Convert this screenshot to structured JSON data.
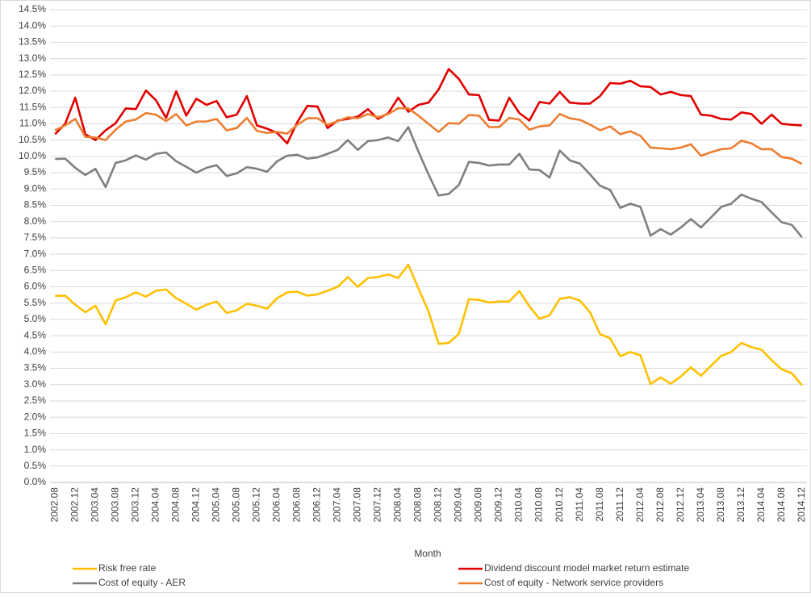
{
  "chart_data": {
    "type": "line",
    "x_label": "Month",
    "categories": [
      "2002.08",
      null,
      "2002.12",
      null,
      "2003.04",
      null,
      "2003.08",
      null,
      "2003.12",
      null,
      "2004.04",
      null,
      "2004.08",
      null,
      "2004.12",
      null,
      "2005.04",
      null,
      "2005.08",
      null,
      "2005.12",
      null,
      "2006.04",
      null,
      "2006.08",
      null,
      "2006.12",
      null,
      "2007.04",
      null,
      "2007.08",
      null,
      "2007.12",
      null,
      "2008.04",
      null,
      "2008.08",
      null,
      "2008.12",
      null,
      "2009.04",
      null,
      "2009.08",
      null,
      "2009.12",
      null,
      "2010.04",
      null,
      "2010.08",
      null,
      "2010.12",
      null,
      "2011.04",
      null,
      "2011.08",
      null,
      "2011.12",
      null,
      "2012.04",
      null,
      "2012.08",
      null,
      "2012.12",
      null,
      "2013.04",
      null,
      "2013.08",
      null,
      "2013.12",
      null,
      "2014.04",
      null,
      "2014.08",
      null,
      "2014.12"
    ],
    "series": [
      {
        "name": "Risk free rate",
        "color": "#ffc000",
        "values": [
          5.72,
          5.73,
          5.45,
          5.22,
          5.42,
          4.85,
          5.58,
          5.68,
          5.83,
          5.7,
          5.88,
          5.92,
          5.65,
          5.48,
          5.3,
          5.45,
          5.55,
          5.2,
          5.28,
          5.48,
          5.42,
          5.33,
          5.65,
          5.83,
          5.85,
          5.73,
          5.77,
          5.88,
          6.0,
          6.3,
          6.0,
          6.27,
          6.3,
          6.38,
          6.27,
          6.68,
          5.95,
          5.25,
          4.25,
          4.28,
          4.55,
          5.62,
          5.6,
          5.52,
          5.55,
          5.55,
          5.87,
          5.4,
          5.02,
          5.13,
          5.63,
          5.68,
          5.58,
          5.22,
          4.55,
          4.42,
          3.87,
          4.0,
          3.9,
          3.02,
          3.22,
          3.03,
          3.25,
          3.53,
          3.27,
          3.58,
          3.88,
          4.0,
          4.28,
          4.15,
          4.07,
          3.75,
          3.47,
          3.35,
          2.98
        ]
      },
      {
        "name": "Dividend discount model market return estimate",
        "color": "#e00000",
        "values": [
          10.68,
          11.0,
          11.8,
          10.68,
          10.5,
          10.8,
          11.02,
          11.47,
          11.45,
          12.02,
          11.72,
          11.18,
          12.0,
          11.25,
          11.77,
          11.58,
          11.7,
          11.2,
          11.28,
          11.85,
          10.95,
          10.85,
          10.72,
          10.4,
          11.05,
          11.55,
          11.53,
          10.87,
          11.1,
          11.15,
          11.22,
          11.45,
          11.15,
          11.32,
          11.8,
          11.37,
          11.58,
          11.65,
          12.05,
          12.68,
          12.38,
          11.9,
          11.88,
          11.12,
          11.1,
          11.8,
          11.33,
          11.1,
          11.67,
          11.62,
          11.98,
          11.65,
          11.62,
          11.62,
          11.85,
          12.25,
          12.23,
          12.32,
          12.15,
          12.13,
          11.9,
          11.98,
          11.88,
          11.85,
          11.28,
          11.25,
          11.15,
          11.13,
          11.35,
          11.3,
          11.0,
          11.28,
          11.0,
          10.97,
          10.95
        ]
      },
      {
        "name": "Cost of equity - AER",
        "color": "#7f7f7f",
        "values": [
          9.92,
          9.93,
          9.65,
          9.43,
          9.62,
          9.06,
          9.8,
          9.88,
          10.03,
          9.9,
          10.08,
          10.12,
          9.85,
          9.68,
          9.5,
          9.65,
          9.73,
          9.4,
          9.48,
          9.67,
          9.62,
          9.53,
          9.85,
          10.02,
          10.05,
          9.93,
          9.97,
          10.08,
          10.2,
          10.5,
          10.2,
          10.47,
          10.5,
          10.58,
          10.47,
          10.9,
          10.15,
          9.45,
          8.8,
          8.85,
          9.12,
          9.83,
          9.8,
          9.72,
          9.75,
          9.75,
          10.08,
          9.6,
          9.58,
          9.35,
          10.18,
          9.88,
          9.78,
          9.45,
          9.1,
          8.97,
          8.42,
          8.55,
          8.45,
          7.57,
          7.77,
          7.6,
          7.82,
          8.08,
          7.82,
          8.13,
          8.45,
          8.55,
          8.83,
          8.7,
          8.6,
          8.28,
          7.98,
          7.9,
          7.52
        ]
      },
      {
        "name": "Cost of equity - Network service providers",
        "color": "#ed7d31",
        "values": [
          10.8,
          10.95,
          11.15,
          10.6,
          10.58,
          10.5,
          10.82,
          11.07,
          11.13,
          11.33,
          11.28,
          11.08,
          11.3,
          10.95,
          11.07,
          11.07,
          11.15,
          10.8,
          10.87,
          11.18,
          10.78,
          10.72,
          10.75,
          10.7,
          10.97,
          11.17,
          11.17,
          10.97,
          11.08,
          11.2,
          11.17,
          11.3,
          11.2,
          11.3,
          11.48,
          11.47,
          11.25,
          11.0,
          10.75,
          11.02,
          11.0,
          11.27,
          11.25,
          10.9,
          10.9,
          11.18,
          11.13,
          10.82,
          10.92,
          10.95,
          11.3,
          11.17,
          11.12,
          10.98,
          10.8,
          10.92,
          10.68,
          10.77,
          10.63,
          10.27,
          10.25,
          10.22,
          10.27,
          10.37,
          10.02,
          10.13,
          10.22,
          10.25,
          10.48,
          10.4,
          10.22,
          10.22,
          9.98,
          9.93,
          9.77
        ]
      }
    ],
    "ylim": [
      0,
      14.5
    ],
    "yticks": [
      {
        "value": 0,
        "label": "0.0%"
      },
      {
        "value": 0.5,
        "label": "0.5%"
      },
      {
        "value": 1,
        "label": "1.0%"
      },
      {
        "value": 1.5,
        "label": "1.5%"
      },
      {
        "value": 2,
        "label": "2.0%"
      },
      {
        "value": 2.5,
        "label": "2.5%"
      },
      {
        "value": 3,
        "label": "3.0%"
      },
      {
        "value": 3.5,
        "label": "3.5%"
      },
      {
        "value": 4,
        "label": "4.0%"
      },
      {
        "value": 4.5,
        "label": "4.5%"
      },
      {
        "value": 5,
        "label": "5.0%"
      },
      {
        "value": 5.5,
        "label": "5.5%"
      },
      {
        "value": 6,
        "label": "6.0%"
      },
      {
        "value": 6.5,
        "label": "6.5%"
      },
      {
        "value": 7,
        "label": "7.0%"
      },
      {
        "value": 7.5,
        "label": "7.5%"
      },
      {
        "value": 8,
        "label": "8.0%"
      },
      {
        "value": 8.5,
        "label": "8.5%"
      },
      {
        "value": 9,
        "label": "9.0%"
      },
      {
        "value": 9.5,
        "label": "9.5%"
      },
      {
        "value": 10,
        "label": "10.0%"
      },
      {
        "value": 10.5,
        "label": "10.5%"
      },
      {
        "value": 11,
        "label": "11.0%"
      },
      {
        "value": 11.5,
        "label": "11.5%"
      },
      {
        "value": 12,
        "label": "12.0%"
      },
      {
        "value": 12.5,
        "label": "12.5%"
      },
      {
        "value": 13,
        "label": "13.0%"
      },
      {
        "value": 13.5,
        "label": "13.5%"
      },
      {
        "value": 14,
        "label": "14.0%"
      },
      {
        "value": 14.5,
        "label": "14.5%"
      }
    ],
    "grid": true,
    "legend": "bottom"
  }
}
